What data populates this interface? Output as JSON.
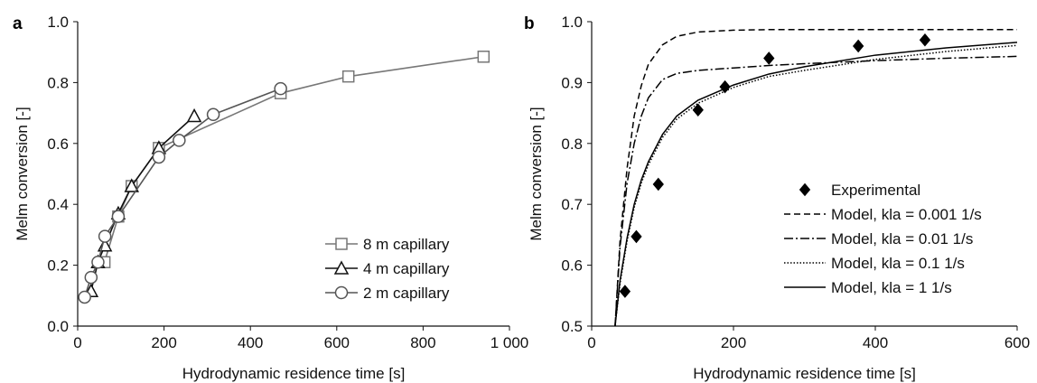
{
  "chart_data": [
    {
      "panel": "a",
      "type": "line",
      "xlabel": "Hydrodynamic residence time [s]",
      "ylabel": "Melm conversion [-]",
      "xlim": [
        0,
        1000
      ],
      "ylim": [
        0.0,
        1.0
      ],
      "xticks": [
        0,
        200,
        400,
        600,
        800,
        1000
      ],
      "xtick_labels": [
        "0",
        "200",
        "400",
        "600",
        "800",
        "1 000"
      ],
      "yticks": [
        0.0,
        0.2,
        0.4,
        0.6,
        0.8,
        1.0
      ],
      "ytick_labels": [
        "0.0",
        "0.2",
        "0.4",
        "0.6",
        "0.8",
        "1.0"
      ],
      "grid": false,
      "legend_position": "bottom-right",
      "series": [
        {
          "name": "8 m capillary",
          "marker": "square",
          "color": "#777777",
          "x": [
            62,
            94,
            125,
            188,
            470,
            627,
            940
          ],
          "y": [
            0.21,
            0.36,
            0.46,
            0.585,
            0.765,
            0.82,
            0.885
          ]
        },
        {
          "name": "4 m capillary",
          "marker": "triangle",
          "color": "#111111",
          "x": [
            31,
            47,
            63,
            94,
            125,
            188,
            270
          ],
          "y": [
            0.115,
            0.21,
            0.265,
            0.37,
            0.46,
            0.585,
            0.69
          ]
        },
        {
          "name": "2 m capillary",
          "marker": "circle",
          "color": "#555555",
          "x": [
            16,
            31,
            47,
            63,
            94,
            188,
            235,
            314,
            470
          ],
          "y": [
            0.095,
            0.16,
            0.21,
            0.295,
            0.36,
            0.555,
            0.61,
            0.695,
            0.78
          ]
        }
      ]
    },
    {
      "panel": "b",
      "type": "scatter",
      "xlabel": "Hydrodynamic residence time [s]",
      "ylabel": "Melm conversion [-]",
      "xlim": [
        0,
        600
      ],
      "ylim": [
        0.5,
        1.0
      ],
      "xticks": [
        0,
        200,
        400,
        600
      ],
      "xtick_labels": [
        "0",
        "200",
        "400",
        "600"
      ],
      "yticks": [
        0.5,
        0.6,
        0.7,
        0.8,
        0.9,
        1.0
      ],
      "ytick_labels": [
        "0.5",
        "0.6",
        "0.7",
        "0.8",
        "0.9",
        "1.0"
      ],
      "grid": false,
      "legend_position": "bottom-right",
      "series": [
        {
          "name": "Experimental",
          "marker": "diamond",
          "color": "#000000",
          "x": [
            47,
            63,
            94,
            150,
            188,
            250,
            376,
            470
          ],
          "y": [
            0.557,
            0.647,
            0.733,
            0.855,
            0.893,
            0.94,
            0.96,
            0.97
          ]
        },
        {
          "name": "Model, kla = 0.001 1/s",
          "line_style": "dashed",
          "color": "#000000",
          "x": [
            33,
            40,
            50,
            60,
            70,
            80,
            100,
            120,
            150,
            200,
            250,
            300,
            400,
            500,
            600
          ],
          "y": [
            0.5,
            0.64,
            0.76,
            0.845,
            0.895,
            0.93,
            0.962,
            0.976,
            0.983,
            0.986,
            0.987,
            0.987,
            0.987,
            0.987,
            0.987
          ]
        },
        {
          "name": "Model, kla = 0.01 1/s",
          "line_style": "dashdot",
          "color": "#000000",
          "x": [
            33,
            40,
            50,
            60,
            70,
            80,
            100,
            120,
            150,
            200,
            250,
            300,
            400,
            500,
            600
          ],
          "y": [
            0.5,
            0.63,
            0.735,
            0.8,
            0.845,
            0.875,
            0.905,
            0.915,
            0.92,
            0.924,
            0.928,
            0.931,
            0.936,
            0.94,
            0.943
          ]
        },
        {
          "name": "Model, kla = 0.1 1/s",
          "line_style": "dotted",
          "color": "#000000",
          "x": [
            33,
            40,
            50,
            60,
            70,
            80,
            100,
            120,
            150,
            200,
            250,
            300,
            400,
            500,
            600
          ],
          "y": [
            0.5,
            0.57,
            0.64,
            0.695,
            0.735,
            0.765,
            0.81,
            0.84,
            0.866,
            0.892,
            0.91,
            0.92,
            0.938,
            0.951,
            0.961
          ]
        },
        {
          "name": "Model, kla = 1 1/s",
          "line_style": "solid",
          "color": "#000000",
          "x": [
            33,
            40,
            50,
            60,
            70,
            80,
            100,
            120,
            150,
            200,
            250,
            300,
            400,
            500,
            600
          ],
          "y": [
            0.5,
            0.575,
            0.645,
            0.7,
            0.74,
            0.77,
            0.815,
            0.845,
            0.871,
            0.896,
            0.914,
            0.926,
            0.945,
            0.957,
            0.966
          ]
        }
      ]
    }
  ]
}
